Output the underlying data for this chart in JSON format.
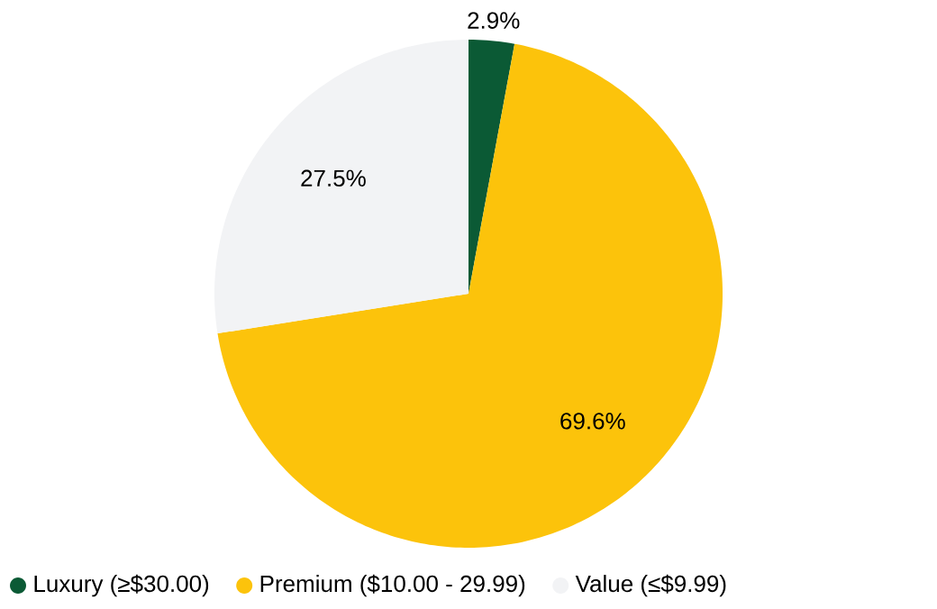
{
  "chart_data": {
    "type": "pie",
    "categories": [
      "Luxury (≥$30.00)",
      "Premium ($10.00 - 29.99)",
      "Value (≤$9.99)"
    ],
    "values": [
      2.9,
      69.6,
      27.5
    ],
    "colors": [
      "#0b5a35",
      "#fcc30b",
      "#f2f3f5"
    ],
    "value_labels": [
      "2.9%",
      "69.6%",
      "27.5%"
    ],
    "legend": "bottom"
  }
}
